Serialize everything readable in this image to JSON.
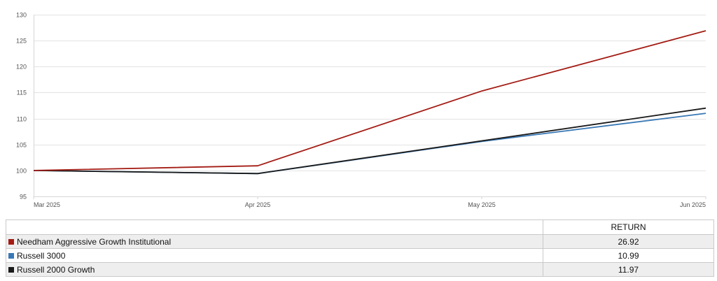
{
  "chart_data": {
    "type": "line",
    "x": [
      "Mar 2025",
      "Apr 2025",
      "May 2025",
      "Jun 2025"
    ],
    "series": [
      {
        "name": "Needham Aggressive Growth Institutional",
        "color": "#a31c14",
        "values": [
          100,
          100.9,
          115.3,
          126.9
        ]
      },
      {
        "name": "Russell 3000",
        "color": "#3a78b5",
        "values": [
          100,
          99.4,
          105.6,
          111.0
        ]
      },
      {
        "name": "Russell 2000 Growth",
        "color": "#1a1a1a",
        "values": [
          100,
          99.4,
          105.7,
          112.0
        ]
      }
    ],
    "ylim": [
      95,
      130
    ],
    "yticks": [
      95,
      100,
      105,
      110,
      115,
      120,
      125,
      130
    ],
    "grid": true
  },
  "table": {
    "header_return": "RETURN",
    "rows": [
      {
        "name": "Needham Aggressive Growth Institutional",
        "color": "#a31c14",
        "return": "26.92"
      },
      {
        "name": "Russell 3000",
        "color": "#3a78b5",
        "return": "10.99"
      },
      {
        "name": "Russell 2000 Growth",
        "color": "#1a1a1a",
        "return": "11.97"
      }
    ]
  }
}
